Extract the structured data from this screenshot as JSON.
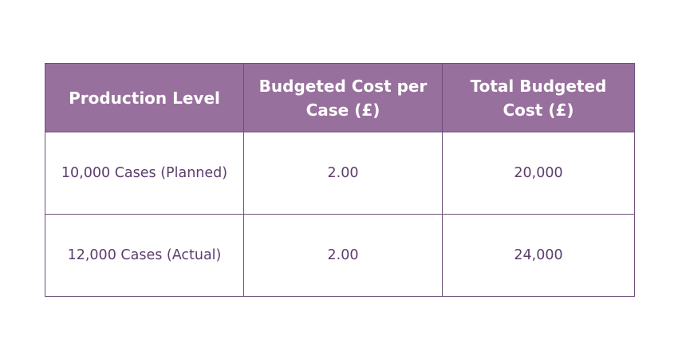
{
  "table": {
    "headers": [
      "Production Level",
      "Budgeted Cost per Case (£)",
      "Total Budgeted Cost (£)"
    ],
    "rows": [
      [
        "10,000 Cases (Planned)",
        "2.00",
        "20,000"
      ],
      [
        "12,000 Cases (Actual)",
        "2.00",
        "24,000"
      ]
    ]
  },
  "colors": {
    "header_background": "#98709d",
    "header_text": "#ffffff",
    "border": "#6e4e7c",
    "body_text": "#5c3d6d"
  }
}
